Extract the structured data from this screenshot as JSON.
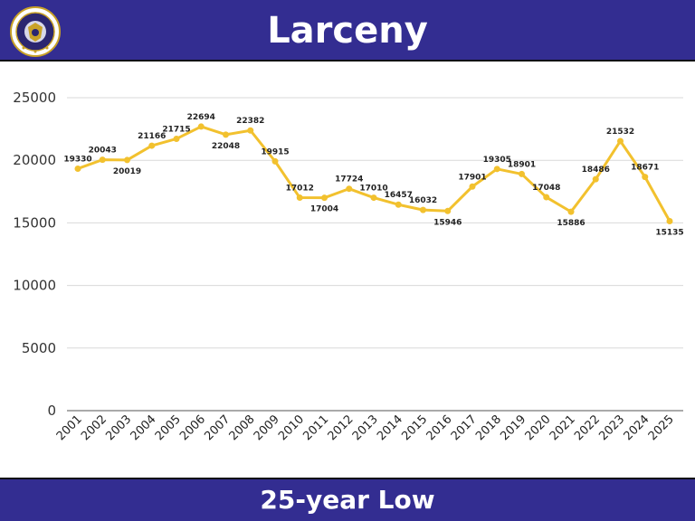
{
  "header": {
    "title": "Larceny"
  },
  "footer": {
    "subtitle": "25-year Low"
  },
  "colors": {
    "band": "#332d91",
    "line": "#f2c12e",
    "grid": "#d9d9d9"
  },
  "logo": {
    "icon": "police-badge-seal-icon"
  },
  "chart_data": {
    "type": "line",
    "title": "Larceny",
    "xlabel": "",
    "ylabel": "",
    "ylim": [
      0,
      25000
    ],
    "yticks": [
      0,
      5000,
      10000,
      15000,
      20000,
      25000
    ],
    "grid": true,
    "categories": [
      "2001",
      "2002",
      "2003",
      "2004",
      "2005",
      "2006",
      "2007",
      "2008",
      "2009",
      "2010",
      "2011",
      "2012",
      "2013",
      "2014",
      "2015",
      "2016",
      "2017",
      "2018",
      "2019",
      "2020",
      "2021",
      "2022",
      "2023",
      "2024",
      "2025"
    ],
    "series": [
      {
        "values": [
          19330,
          20043,
          20019,
          21166,
          21715,
          22694,
          22048,
          22382,
          19915,
          17012,
          17004,
          17724,
          17010,
          16457,
          16032,
          15946,
          17901,
          19305,
          18901,
          17048,
          15886,
          18486,
          21532,
          18671,
          15135
        ]
      }
    ]
  }
}
